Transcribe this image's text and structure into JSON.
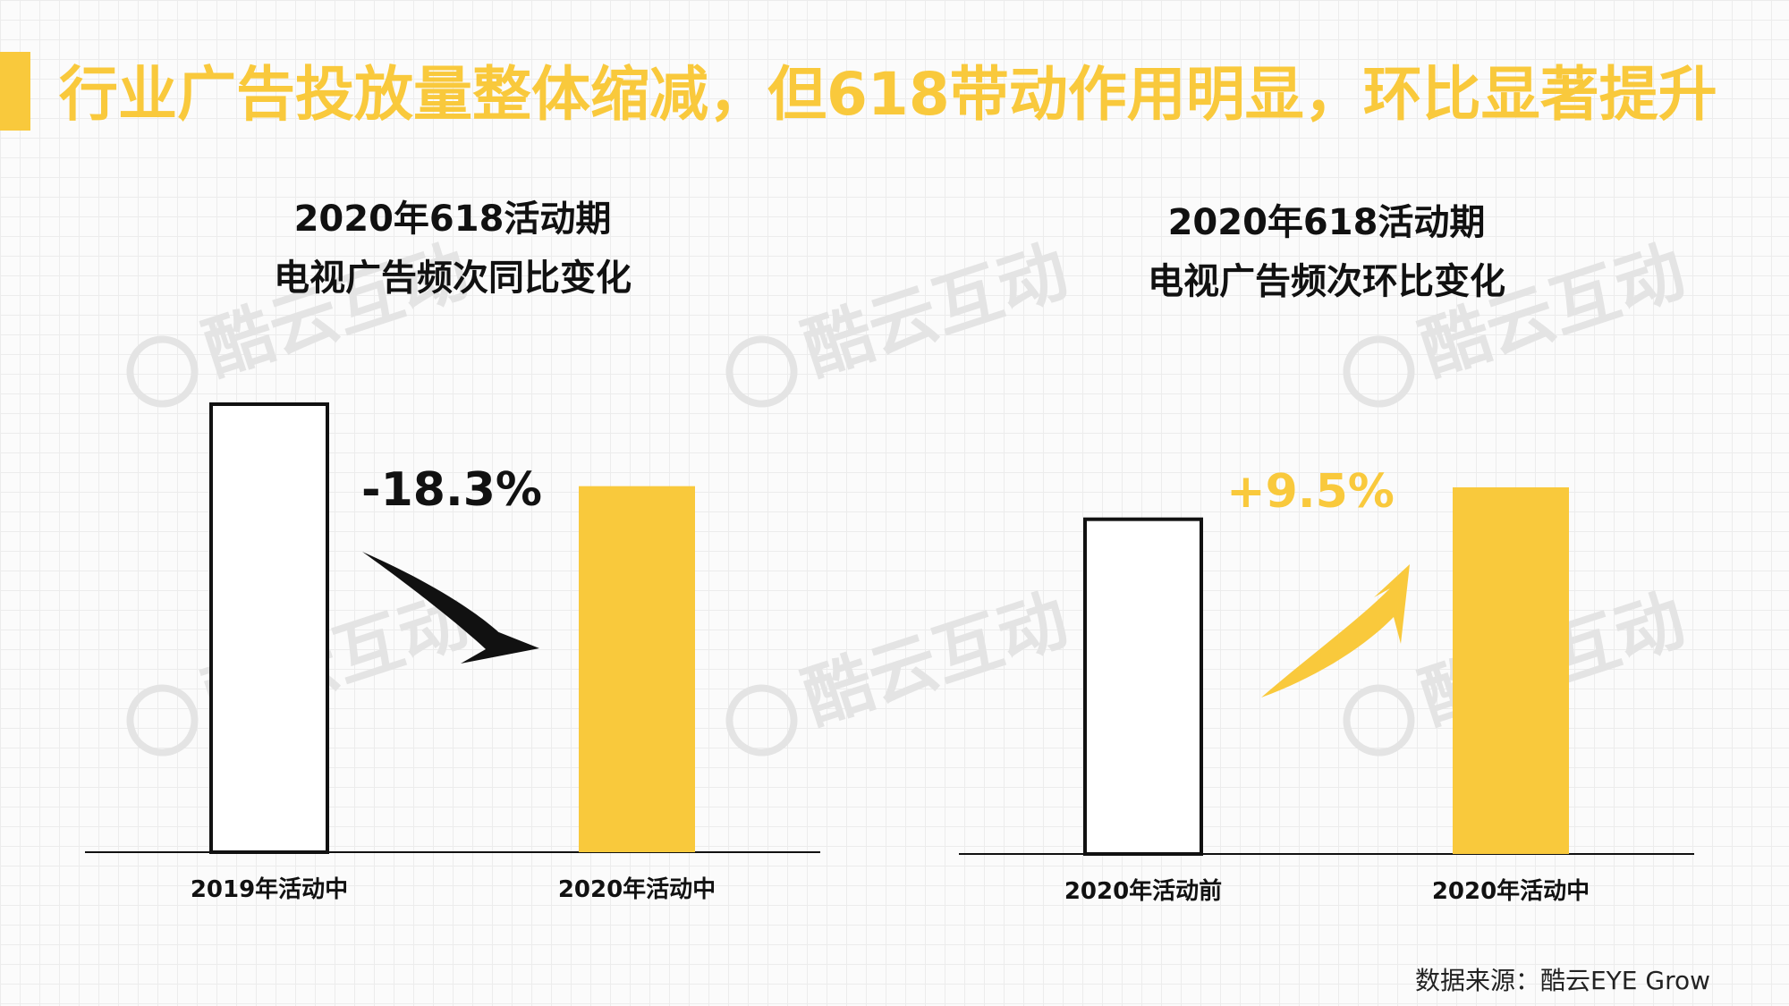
{
  "page": {
    "title": "行业广告投放量整体缩减，但618带动作用明显，环比显著提升",
    "source": "数据来源：酷云EYE Grow",
    "watermark": "酷云互动",
    "colors": {
      "accent": "#f9c93c",
      "outline": "#111111"
    }
  },
  "chart_data": [
    {
      "type": "bar",
      "title_line1": "2020年618活动期",
      "title_line2": "电视广告频次同比变化",
      "categories": [
        "2019年活动中",
        "2020年活动中"
      ],
      "values": [
        100,
        81.7
      ],
      "styles": [
        "outline",
        "filled"
      ],
      "ylim": [
        0,
        100
      ],
      "annotation": {
        "text": "-18.3%",
        "direction": "down",
        "color": "#111111"
      },
      "grid": false
    },
    {
      "type": "bar",
      "title_line1": "2020年618活动期",
      "title_line2": "电视广告频次环比变化",
      "categories": [
        "2020年活动前",
        "2020年活动中"
      ],
      "values": [
        74.5,
        81.6
      ],
      "styles": [
        "outline",
        "filled"
      ],
      "ylim": [
        0,
        81.6
      ],
      "annotation": {
        "text": "+9.5%",
        "direction": "up",
        "color": "#f9c93c"
      },
      "grid": false
    }
  ]
}
